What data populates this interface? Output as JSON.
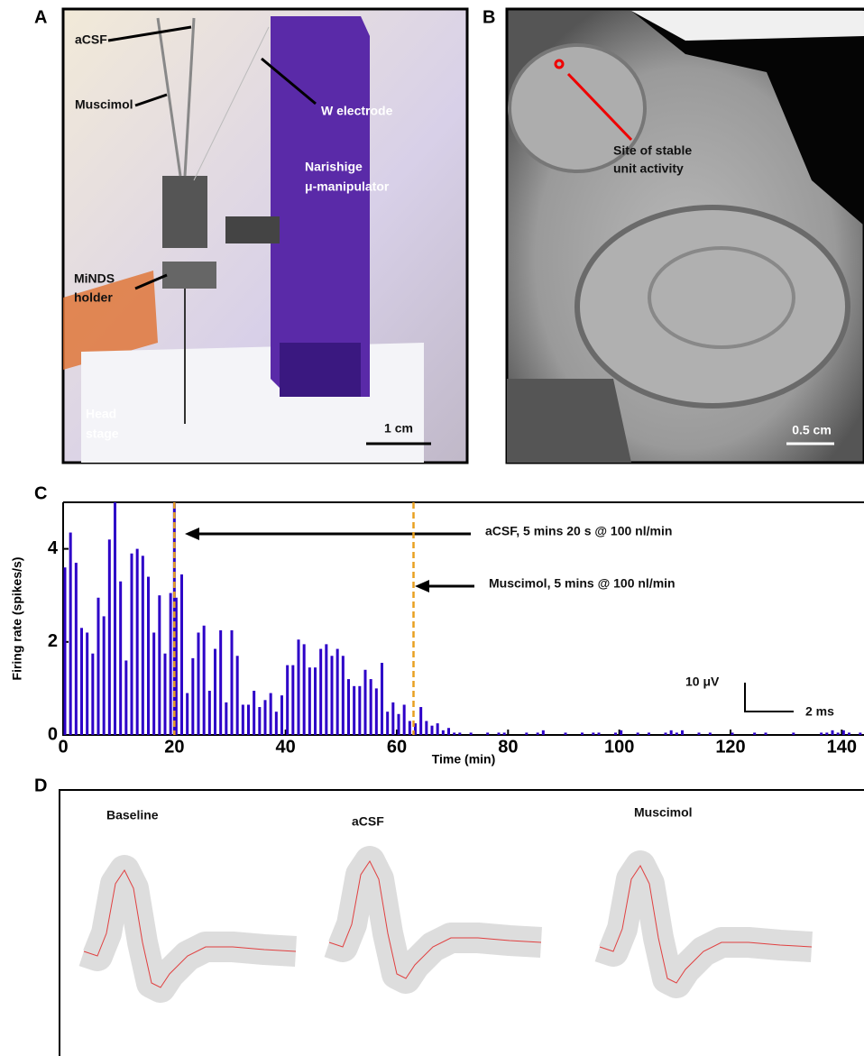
{
  "panel_a": {
    "label": "A",
    "annotations": [
      "aCSF",
      "Muscimol",
      "W electrode",
      "Narishige",
      "μ-manipulator",
      "MiNDS",
      "holder",
      "Head",
      "stage"
    ],
    "scale_bar": "1 cm"
  },
  "panel_b": {
    "label": "B",
    "annotations": [
      "Site of stable",
      "unit activity"
    ],
    "scale_bar": "0.5 cm"
  },
  "chart_data": {
    "type": "bar",
    "panel_label": "C",
    "xlabel": "Time (min)",
    "ylabel": "Firing rate (spikes/s)",
    "color": "#2d00c8",
    "x": [
      0,
      1,
      2,
      3,
      4,
      5,
      6,
      7,
      8,
      9,
      10,
      11,
      12,
      13,
      14,
      15,
      16,
      17,
      18,
      19,
      20,
      21,
      22,
      23,
      24,
      25,
      26,
      27,
      28,
      29,
      30,
      31,
      32,
      33,
      34,
      35,
      36,
      37,
      38,
      39,
      40,
      41,
      42,
      43,
      44,
      45,
      46,
      47,
      48,
      49,
      50,
      51,
      52,
      53,
      54,
      55,
      56,
      57,
      58,
      59,
      60,
      61,
      62,
      63,
      64,
      65,
      66,
      67,
      68,
      69,
      70,
      71,
      72,
      73,
      74,
      75,
      76,
      77,
      78,
      79,
      80,
      81,
      82,
      83,
      84,
      85,
      86,
      87,
      88,
      89,
      90,
      91,
      92,
      93,
      94,
      95,
      96,
      97,
      98,
      99,
      100,
      101,
      102,
      103,
      104,
      105,
      106,
      107,
      108,
      109,
      110,
      111,
      112,
      113,
      114,
      115,
      116,
      117,
      118,
      119,
      120,
      121,
      122,
      123,
      124,
      125,
      126,
      127,
      128,
      129,
      130,
      131,
      132,
      133,
      134,
      135,
      136,
      137,
      138,
      139,
      140,
      141,
      142,
      143
    ],
    "values": [
      3.6,
      4.35,
      3.7,
      2.3,
      2.2,
      1.75,
      2.95,
      2.55,
      4.2,
      5.0,
      3.3,
      1.6,
      3.9,
      4.0,
      3.85,
      3.4,
      2.2,
      3.0,
      1.75,
      3.05,
      2.95,
      3.45,
      0.9,
      1.65,
      2.2,
      2.35,
      0.95,
      1.85,
      2.25,
      0.7,
      2.25,
      1.7,
      0.65,
      0.65,
      0.95,
      0.6,
      0.75,
      0.9,
      0.5,
      0.85,
      1.5,
      1.5,
      2.05,
      1.95,
      1.45,
      1.45,
      1.85,
      1.95,
      1.7,
      1.85,
      1.7,
      1.2,
      1.05,
      1.05,
      1.4,
      1.2,
      1.0,
      1.55,
      0.5,
      0.7,
      0.45,
      0.65,
      0.3,
      0.25,
      0.6,
      0.3,
      0.2,
      0.25,
      0.1,
      0.15,
      0.05,
      0.05,
      0,
      0.05,
      0,
      0,
      0.05,
      0,
      0.05,
      0.05,
      0,
      0,
      0,
      0.05,
      0,
      0.05,
      0.1,
      0,
      0,
      0,
      0.05,
      0,
      0,
      0.05,
      0,
      0.05,
      0.05,
      0,
      0,
      0.05,
      0.1,
      0,
      0,
      0.05,
      0,
      0.05,
      0,
      0,
      0.05,
      0.1,
      0.05,
      0.1,
      0,
      0,
      0.05,
      0,
      0.05,
      0,
      0,
      0,
      0.05,
      0,
      0,
      0,
      0.05,
      0,
      0.05,
      0,
      0,
      0,
      0,
      0.05,
      0,
      0,
      0,
      0,
      0.05,
      0.05,
      0.1,
      0.05,
      0.1,
      0.05,
      0,
      0.05
    ],
    "xlim": [
      0,
      144
    ],
    "ylim": [
      0,
      5
    ],
    "xticks": [
      0,
      20,
      40,
      60,
      80,
      100,
      120,
      140
    ],
    "yticks": [
      0,
      2,
      4
    ],
    "markers": [
      {
        "x": 20,
        "label": "aCSF, 5 mins 20 s @ 100 nl/min",
        "color": "#e8a020"
      },
      {
        "x": 63,
        "label": "Muscimol, 5 mins @ 100 nl/min",
        "color": "#e8a020"
      }
    ]
  },
  "panel_d": {
    "label": "D",
    "conditions": [
      "Baseline",
      "aCSF",
      "Muscimol"
    ],
    "scale_bar_y": "10 μV",
    "scale_bar_x": "2 ms"
  }
}
